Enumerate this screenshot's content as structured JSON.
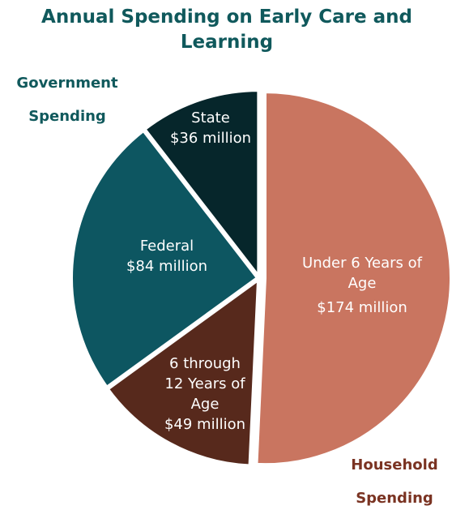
{
  "chart_data": {
    "type": "pie",
    "title": "Annual Spending on Early Care and Learning",
    "categories": [
      "Under 6 Years of Age",
      "6 through 12 Years of Age",
      "Federal",
      "State"
    ],
    "values": [
      174,
      49,
      84,
      36
    ],
    "value_labels": [
      "$174 million",
      "$49 million",
      "$84 million",
      "$36 million"
    ],
    "colors": [
      "#c97560",
      "#57291c",
      "#0d5661",
      "#06262b"
    ],
    "annotations": [
      "Government Spending",
      "Household Spending"
    ]
  }
}
